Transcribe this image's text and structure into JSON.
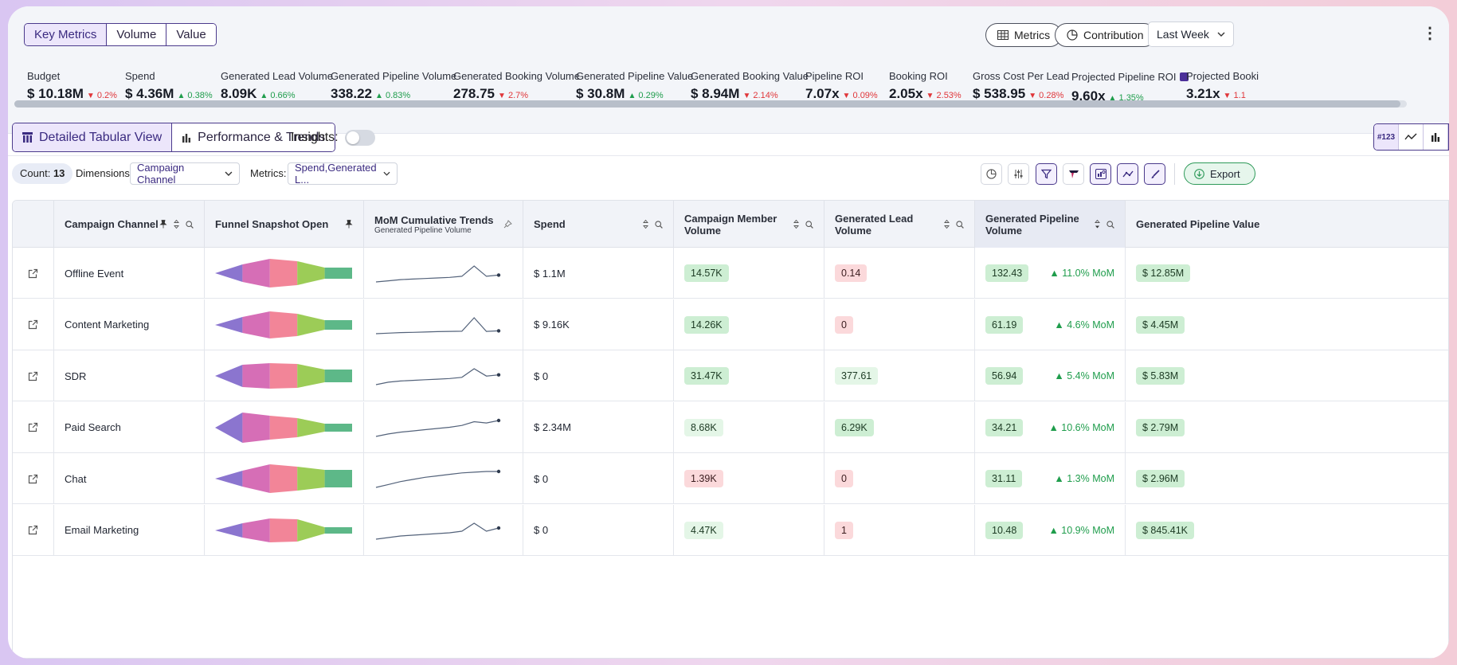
{
  "top": {
    "tabs": [
      "Key Metrics",
      "Volume",
      "Value"
    ],
    "metrics_btn": "Metrics",
    "contribution_btn": "Contribution",
    "period": "Last Week"
  },
  "kpis": [
    {
      "label": "Budget",
      "value": "$ 10.18M",
      "change": "0.2%",
      "dir": "down"
    },
    {
      "label": "Spend",
      "value": "$ 4.36M",
      "change": "0.38%",
      "dir": "up"
    },
    {
      "label": "Generated Lead Volume",
      "value": "8.09K",
      "change": "0.66%",
      "dir": "up"
    },
    {
      "label": "Generated Pipeline Volume",
      "value": "338.22",
      "change": "0.83%",
      "dir": "up"
    },
    {
      "label": "Generated Booking Volume",
      "value": "278.75",
      "change": "2.7%",
      "dir": "down"
    },
    {
      "label": "Generated Pipeline Value",
      "value": "$ 30.8M",
      "change": "0.29%",
      "dir": "up"
    },
    {
      "label": "Generated Booking Value",
      "value": "$ 8.94M",
      "change": "2.14%",
      "dir": "down"
    },
    {
      "label": "Pipeline ROI",
      "value": "7.07x",
      "change": "0.09%",
      "dir": "down"
    },
    {
      "label": "Booking ROI",
      "value": "2.05x",
      "change": "2.53%",
      "dir": "down"
    },
    {
      "label": "Gross Cost Per Lead",
      "value": "$ 538.95",
      "change": "0.28%",
      "dir": "down"
    },
    {
      "label": "Projected Pipeline ROI",
      "value": "9.60x",
      "change": "1.35%",
      "dir": "up"
    },
    {
      "label": "Projected Booki",
      "value": "3.21x",
      "change": "1.1",
      "dir": "down"
    }
  ],
  "views": {
    "tabular": "Detailed Tabular View",
    "trends": "Performance & Trends",
    "insights": "Insights:",
    "numeric_mode": "#123"
  },
  "filters": {
    "count_label": "Count:",
    "count": "13",
    "dimensions_label": "Dimensions:",
    "dimension": "Campaign Channel",
    "metrics_label": "Metrics:",
    "metrics": "Spend,Generated L...",
    "export": "Export"
  },
  "columns": {
    "channel": "Campaign Channel",
    "funnel": "Funnel Snapshot Open",
    "trend": "MoM Cumulative Trends",
    "trend_sub": "Generated Pipeline Volume",
    "spend": "Spend",
    "member": "Campaign Member Volume",
    "lead": "Generated Lead Volume",
    "pipeline": "Generated Pipeline Volume",
    "pvalue": "Generated Pipeline Value"
  },
  "rows": [
    {
      "channel": "Offline Event",
      "spend": "$ 1.1M",
      "member": "14.57K",
      "member_tone": "green",
      "lead": "0.14",
      "lead_tone": "red",
      "pipeline": "132.43",
      "mom": "11.0% MoM",
      "pvalue": "$ 12.85M",
      "funnel": [
        0.55,
        0.9,
        0.75,
        0.35,
        0.35
      ],
      "trend": [
        2,
        3,
        4,
        4.5,
        5,
        5.5,
        6,
        7,
        16,
        7,
        8
      ]
    },
    {
      "channel": "Content Marketing",
      "spend": "$ 9.16K",
      "member": "14.26K",
      "member_tone": "green",
      "lead": "0",
      "lead_tone": "red",
      "pipeline": "61.19",
      "mom": "4.6% MoM",
      "pvalue": "$ 4.45M",
      "funnel": [
        0.5,
        0.85,
        0.7,
        0.3,
        0.3
      ],
      "trend": [
        2,
        2.5,
        3,
        3.2,
        3.5,
        3.8,
        4,
        4.2,
        16,
        4,
        4.5
      ]
    },
    {
      "channel": "SDR",
      "spend": "$ 0",
      "member": "31.47K",
      "member_tone": "green",
      "lead": "377.61",
      "lead_tone": "lgreen",
      "pipeline": "56.94",
      "mom": "5.4% MoM",
      "pvalue": "$ 5.83M",
      "funnel": [
        0.7,
        0.8,
        0.75,
        0.4,
        0.4
      ],
      "trend": [
        2,
        4,
        5,
        5.5,
        6,
        6.5,
        7,
        8,
        15,
        9,
        10
      ]
    },
    {
      "channel": "Paid Search",
      "spend": "$ 2.34M",
      "member": "8.68K",
      "member_tone": "lgreen",
      "lead": "6.29K",
      "lead_tone": "green",
      "pipeline": "34.21",
      "mom": "10.6% MoM",
      "pvalue": "$ 2.79M",
      "funnel": [
        0.95,
        0.75,
        0.6,
        0.25,
        0.25
      ],
      "trend": [
        2,
        4,
        5.5,
        6.5,
        7.5,
        8.5,
        9.5,
        11,
        14,
        13,
        15
      ]
    },
    {
      "channel": "Chat",
      "spend": "$ 0",
      "member": "1.39K",
      "member_tone": "red",
      "lead": "0",
      "lead_tone": "red",
      "pipeline": "31.11",
      "mom": "1.3% MoM",
      "pvalue": "$ 2.96M",
      "funnel": [
        0.5,
        0.9,
        0.75,
        0.55,
        0.55
      ],
      "trend": [
        2,
        4,
        6,
        7.5,
        9,
        10,
        11,
        12,
        12.5,
        13,
        13
      ]
    },
    {
      "channel": "Email Marketing",
      "spend": "$ 0",
      "member": "4.47K",
      "member_tone": "lgreen",
      "lead": "1",
      "lead_tone": "red",
      "pipeline": "10.48",
      "mom": "10.9% MoM",
      "pvalue": "$ 845.41K",
      "funnel": [
        0.45,
        0.75,
        0.7,
        0.2,
        0.2
      ],
      "trend": [
        2,
        3,
        4,
        4.5,
        5,
        5.5,
        6,
        7,
        12,
        7,
        9
      ]
    }
  ],
  "colors": {
    "funnel": [
      "#8b75cf",
      "#d66eb6",
      "#f28598",
      "#9ccc57",
      "#5db888"
    ],
    "up": "#1f9d4c",
    "down": "#e0363a",
    "accent": "#4b3a8c"
  }
}
